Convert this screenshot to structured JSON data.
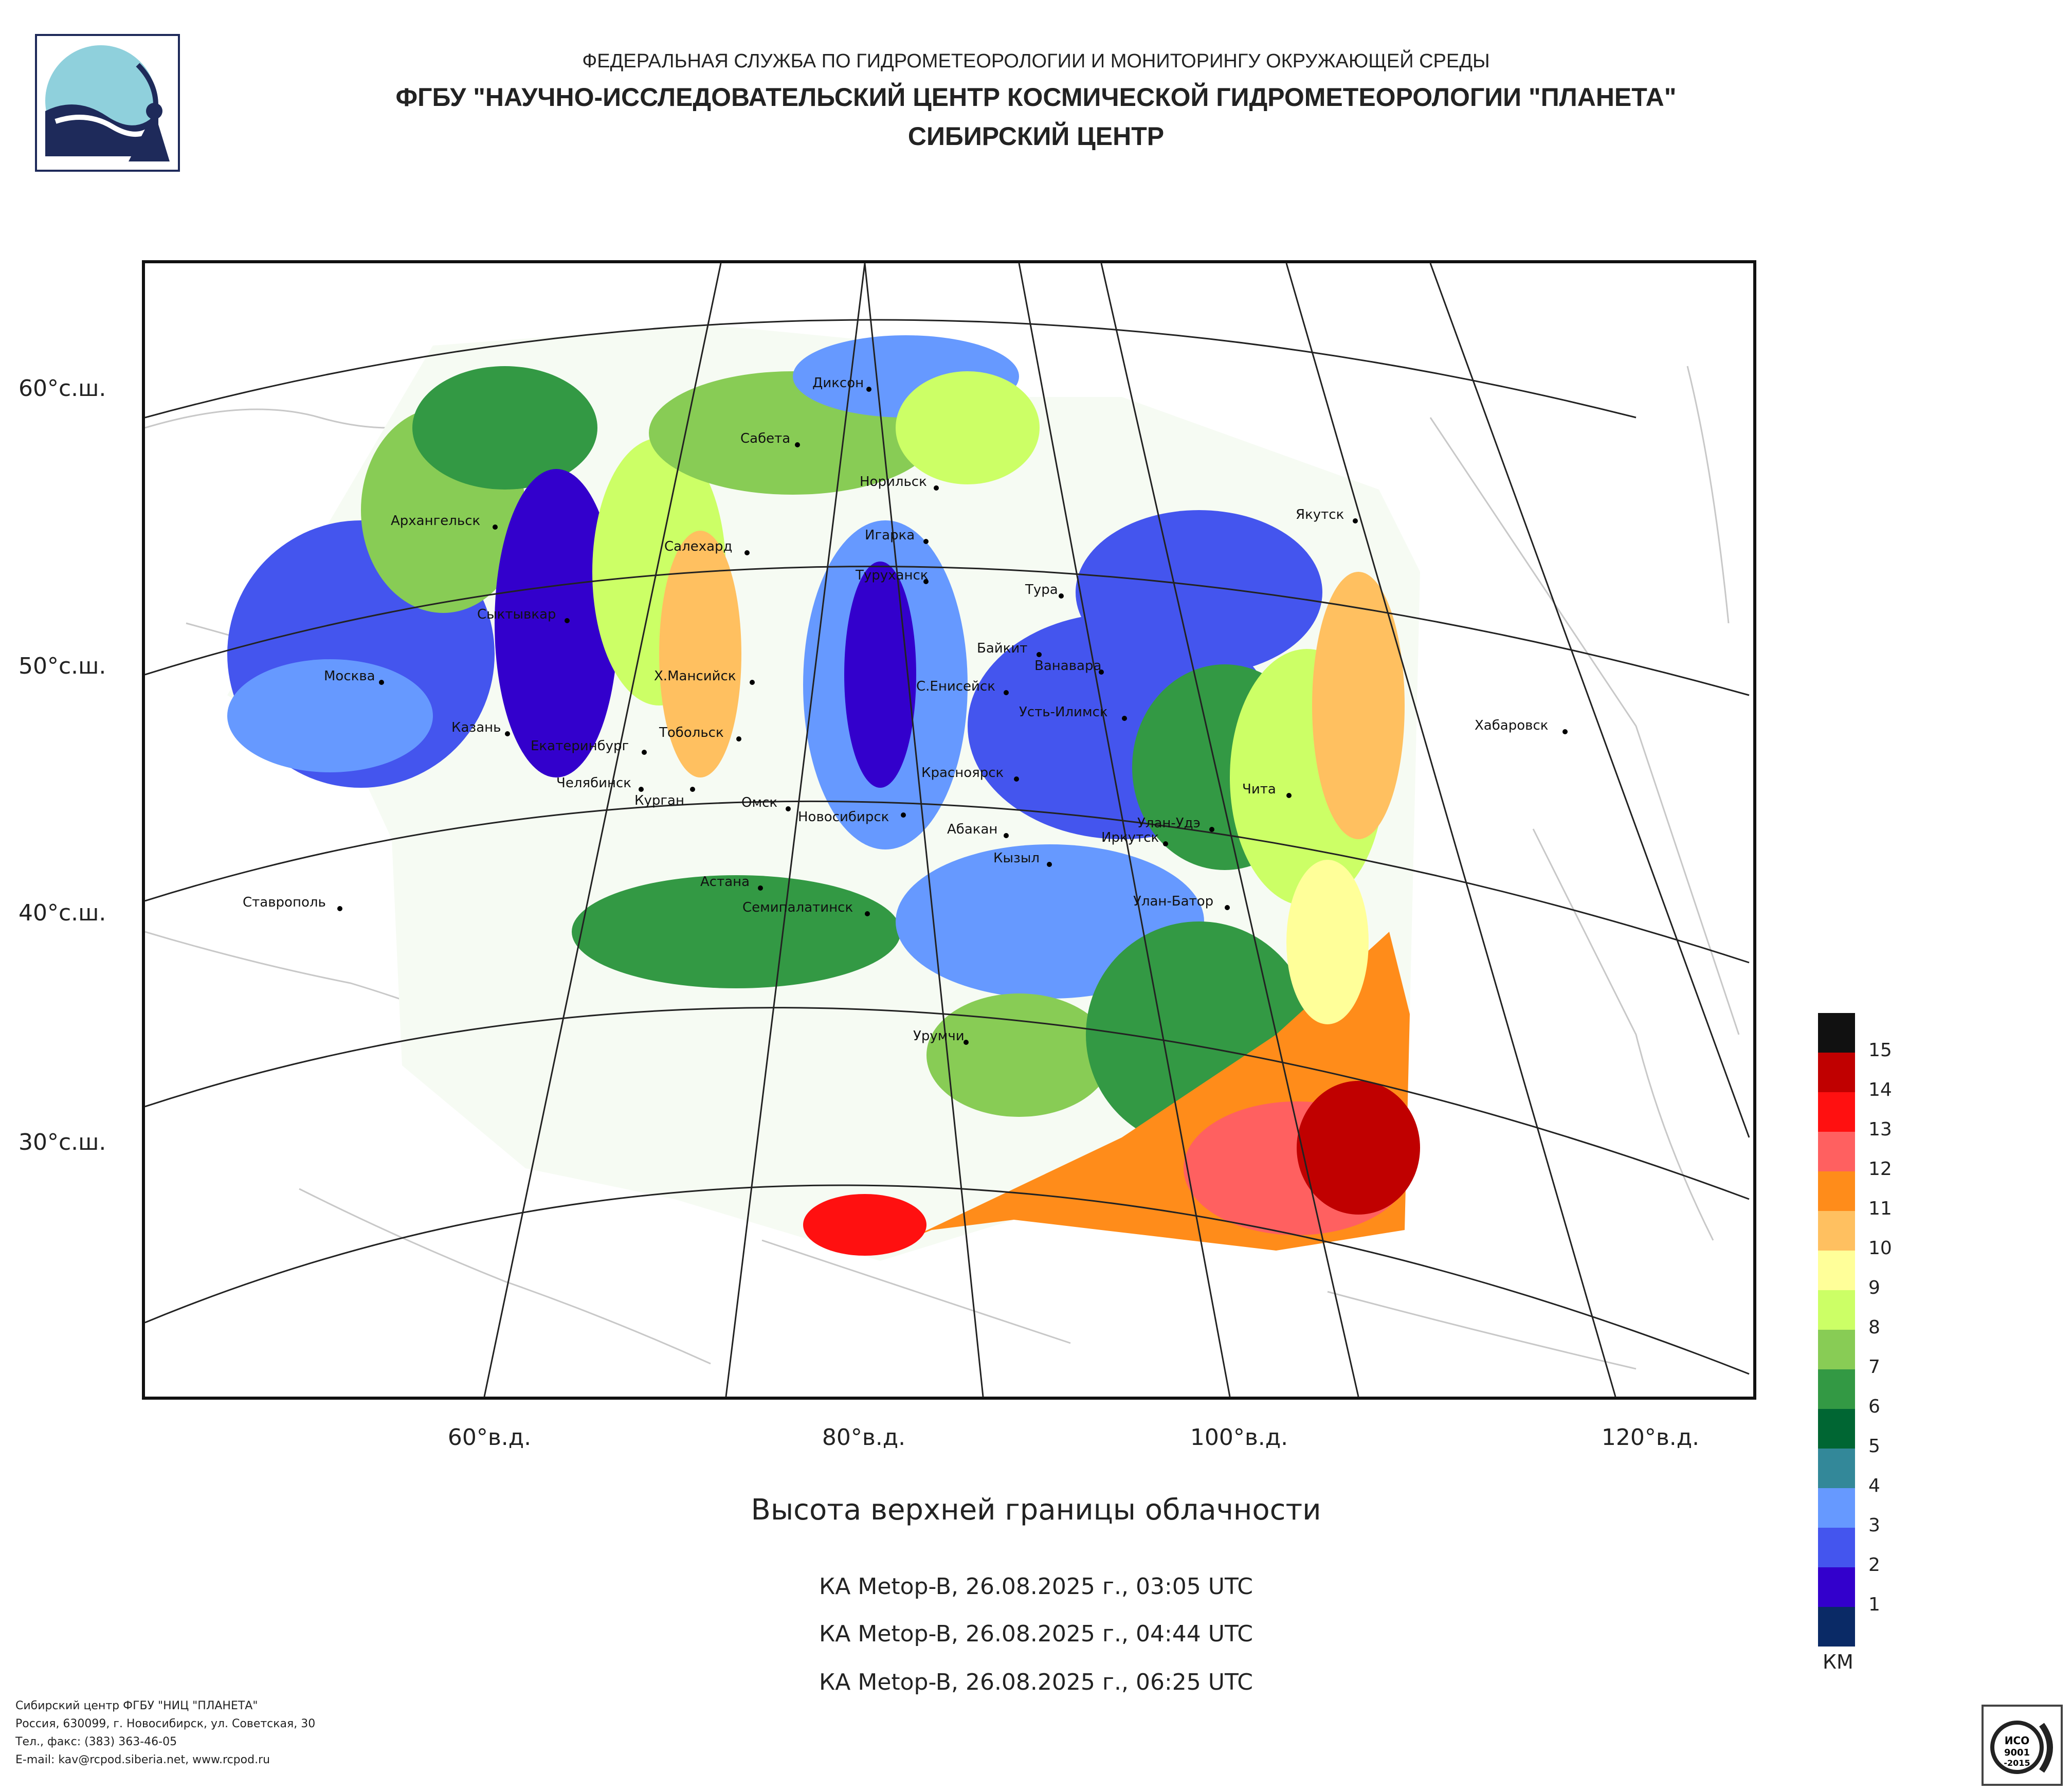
{
  "header": {
    "line1": "ФЕДЕРАЛЬНАЯ СЛУЖБА ПО ГИДРОМЕТЕОРОЛОГИИ И МОНИТОРИНГУ ОКРУЖАЮЩЕЙ СРЕДЫ",
    "line2": "ФГБУ \"НАУЧНО-ИССЛЕДОВАТЕЛЬСКИЙ ЦЕНТР КОСМИЧЕСКОЙ ГИДРОМЕТЕОРОЛОГИИ \"ПЛАНЕТА\"",
    "line3": "СИБИРСКИЙ ЦЕНТР"
  },
  "map": {
    "lat_labels": [
      "60°с.ш.",
      "50°с.ш.",
      "40°с.ш.",
      "30°с.ш."
    ],
    "lon_labels": [
      "60°в.д.",
      "80°в.д.",
      "100°в.д.",
      "120°в.д."
    ],
    "cities": [
      "Диксон",
      "Сабета",
      "Норильск",
      "Якутск",
      "Архангельск",
      "Салехард",
      "Игарка",
      "Туруханск",
      "Тура",
      "Сыктывкар",
      "Байкит",
      "Ванавара",
      "Москва",
      "Х.Мансийск",
      "С.Енисейск",
      "Усть-Илимск",
      "Хабаровск",
      "Казань",
      "Тобольск",
      "Екатеринбург",
      "Красноярск",
      "Челябинск",
      "Чита",
      "Курган",
      "Омск",
      "Новосибирск",
      "Абакан",
      "Улан-Удэ",
      "Иркутск",
      "Кызыл",
      "Астана",
      "Ставрополь",
      "Семипалатинск",
      "Улан-Батор",
      "Урумчи"
    ]
  },
  "title": "Высота верхней границы облачности",
  "passes": [
    "КА Metop-B, 26.08.2025 г., 03:05 UTC",
    "КА Metop-B, 26.08.2025 г., 04:44 UTC",
    "КА Metop-B, 26.08.2025 г., 06:25 UTC"
  ],
  "legend": {
    "unit": "КМ",
    "values": [
      "15",
      "14",
      "13",
      "12",
      "11",
      "10",
      "9",
      "8",
      "7",
      "6",
      "5",
      "4",
      "3",
      "2",
      "1"
    ],
    "colors": [
      "#111111",
      "#c00000",
      "#ff1010",
      "#ff6060",
      "#ff8c1a",
      "#ffc060",
      "#ffff99",
      "#ccff66",
      "#88cc55",
      "#339944",
      "#006633",
      "#338899",
      "#6699ff",
      "#4455ee",
      "#3300cc",
      "#0a2a66"
    ]
  },
  "footer": {
    "lines": [
      "Сибирский центр ФГБУ \"НИЦ \"ПЛАНЕТА\"",
      "Россия, 630099, г. Новосибирск, ул. Советская, 30",
      "Тел., факс: (383) 363-46-05",
      "E-mail: kav@rcpod.siberia.net, www.rcpod.ru"
    ]
  }
}
